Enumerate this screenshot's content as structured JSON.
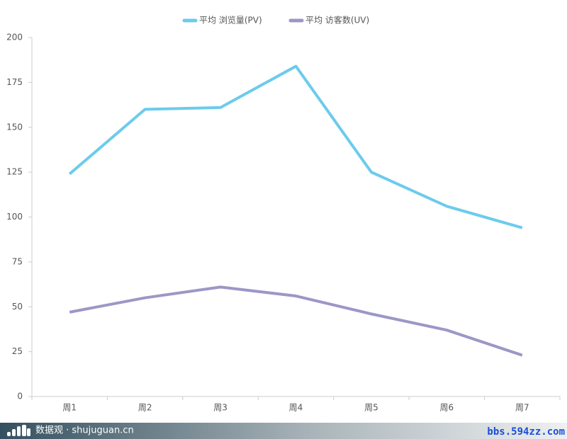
{
  "chart_data": {
    "type": "line",
    "categories": [
      "周1",
      "周2",
      "周3",
      "周4",
      "周5",
      "周6",
      "周7"
    ],
    "series": [
      {
        "name": "平均 浏览量(PV)",
        "color": "#6ccbec",
        "values": [
          124,
          160,
          161,
          184,
          125,
          106,
          94
        ]
      },
      {
        "name": "平均 访客数(UV)",
        "color": "#9b97c6",
        "values": [
          47,
          55,
          61,
          56,
          46,
          37,
          23
        ]
      }
    ],
    "ylim": [
      0,
      200
    ],
    "yticks": [
      0,
      25,
      50,
      75,
      100,
      125,
      150,
      175,
      200
    ],
    "grid": false,
    "legend": "top"
  },
  "footer": {
    "brand": "数据观 · shujuguan.cn",
    "watermark": "bbs.594zz.com"
  }
}
